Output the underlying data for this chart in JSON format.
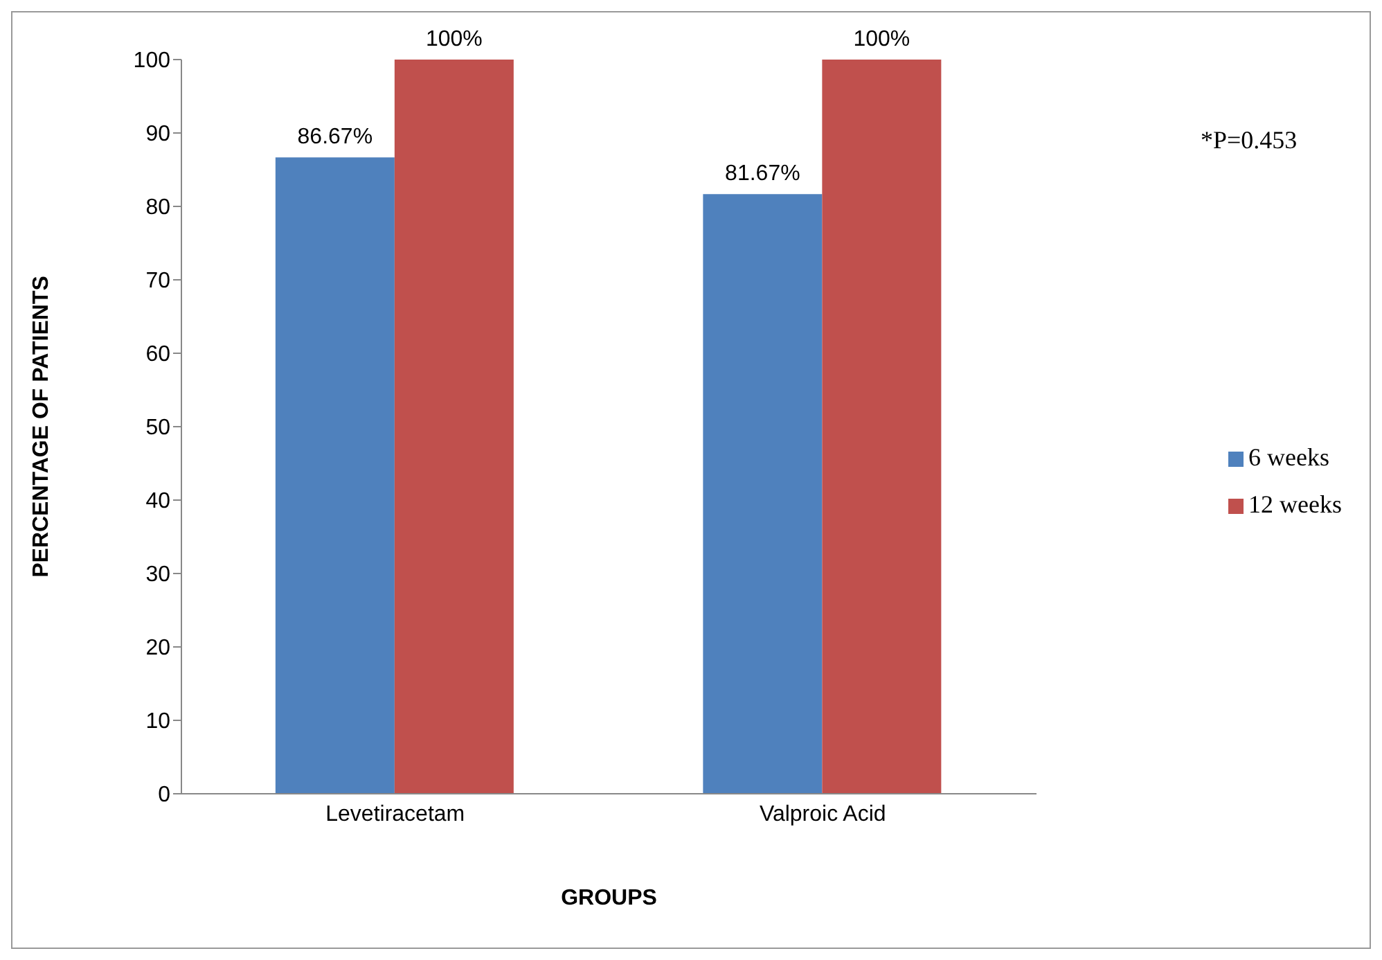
{
  "chart_data": {
    "type": "bar",
    "categories": [
      "Levetiracetam",
      "Valproic Acid"
    ],
    "series": [
      {
        "name": "6 weeks",
        "color": "#4f81bd",
        "values": [
          86.67,
          81.67
        ],
        "value_labels": [
          "86.67%",
          "81.67%"
        ]
      },
      {
        "name": "12 weeks",
        "color": "#c0504d",
        "values": [
          100,
          100
        ],
        "value_labels": [
          "100%",
          "100%"
        ]
      }
    ],
    "xlabel": "GROUPS",
    "ylabel": "PERCENTAGE  OF PATIENTS",
    "ylim": [
      0,
      100
    ],
    "yticks": [
      0,
      10,
      20,
      30,
      40,
      50,
      60,
      70,
      80,
      90,
      100
    ],
    "annotations": [
      "*P=0.453"
    ],
    "grid": false,
    "legend": "right"
  }
}
